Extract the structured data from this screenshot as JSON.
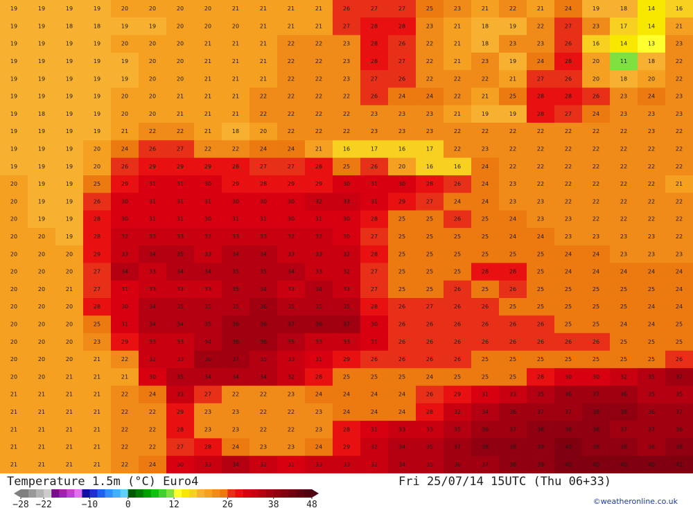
{
  "header": {
    "title": "Temperature 1.5m (°C) Euro4",
    "valid": "Fri 25/07/14 15UTC  (Thu 06+33)",
    "credit": "©weatheronline.co.uk"
  },
  "legend": {
    "min": -28,
    "max": 48,
    "step": 2,
    "ticks": [
      {
        "value": -28,
        "label": "−28"
      },
      {
        "value": -22,
        "label": "−22"
      },
      {
        "value": -10,
        "label": "−10"
      },
      0,
      12,
      26,
      38,
      48
    ],
    "colors": [
      "#808080",
      "#999999",
      "#b3b3b3",
      "#cccccc",
      "#7a0a8c",
      "#a020b0",
      "#c040d0",
      "#e070f0",
      "#1010a0",
      "#2030d0",
      "#2060f0",
      "#3090ff",
      "#40b0ff",
      "#60d0ff",
      "#005a00",
      "#007a00",
      "#00a000",
      "#10c010",
      "#40d030",
      "#80e040",
      "#ffff30",
      "#f8e800",
      "#f8d020",
      "#f8b030",
      "#f5a020",
      "#f08a18",
      "#ec7a10",
      "#e83018",
      "#e81010",
      "#d80010",
      "#c80010",
      "#b40010",
      "#a00010",
      "#900010",
      "#800010",
      "#700010",
      "#600010",
      "#500010"
    ]
  },
  "map": {
    "rows": [
      [
        19,
        19,
        19,
        19,
        20,
        20,
        20,
        20,
        21,
        21,
        21,
        21,
        26,
        27,
        27,
        25,
        23,
        21,
        22,
        21,
        24,
        19,
        18,
        14,
        16
      ],
      [
        19,
        19,
        18,
        18,
        19,
        19,
        20,
        20,
        20,
        21,
        21,
        21,
        27,
        28,
        28,
        23,
        21,
        18,
        19,
        22,
        27,
        23,
        17,
        14,
        21
      ],
      [
        19,
        19,
        19,
        19,
        20,
        20,
        20,
        21,
        21,
        21,
        22,
        22,
        23,
        28,
        26,
        22,
        21,
        18,
        23,
        23,
        26,
        16,
        14,
        13,
        23
      ],
      [
        19,
        19,
        19,
        19,
        19,
        20,
        20,
        21,
        21,
        21,
        22,
        22,
        23,
        28,
        27,
        22,
        21,
        23,
        19,
        24,
        28,
        20,
        11,
        18,
        22
      ],
      [
        19,
        19,
        19,
        19,
        19,
        20,
        20,
        21,
        21,
        21,
        22,
        22,
        23,
        27,
        26,
        22,
        22,
        22,
        21,
        27,
        26,
        20,
        18,
        20,
        22
      ],
      [
        19,
        19,
        19,
        19,
        20,
        20,
        21,
        21,
        21,
        22,
        22,
        22,
        22,
        26,
        24,
        24,
        22,
        21,
        25,
        28,
        28,
        26,
        23,
        24,
        23
      ],
      [
        19,
        18,
        19,
        19,
        20,
        20,
        21,
        21,
        21,
        22,
        22,
        22,
        22,
        23,
        23,
        23,
        21,
        19,
        19,
        28,
        27,
        24,
        23,
        23,
        23
      ],
      [
        19,
        19,
        19,
        19,
        21,
        22,
        22,
        21,
        18,
        20,
        22,
        22,
        22,
        23,
        23,
        23,
        22,
        22,
        22,
        22,
        22,
        22,
        22,
        23,
        22
      ],
      [
        19,
        19,
        19,
        20,
        24,
        26,
        27,
        22,
        22,
        24,
        24,
        21,
        16,
        17,
        16,
        17,
        22,
        23,
        22,
        22,
        22,
        22,
        22,
        22,
        22
      ],
      [
        19,
        19,
        19,
        20,
        26,
        29,
        29,
        29,
        28,
        27,
        27,
        28,
        25,
        26,
        20,
        16,
        16,
        24,
        22,
        22,
        22,
        22,
        22,
        22,
        22
      ],
      [
        20,
        19,
        19,
        25,
        29,
        31,
        31,
        30,
        29,
        28,
        29,
        29,
        30,
        31,
        30,
        28,
        26,
        24,
        23,
        22,
        22,
        22,
        22,
        22,
        21
      ],
      [
        20,
        19,
        19,
        26,
        30,
        31,
        31,
        31,
        30,
        30,
        30,
        32,
        33,
        31,
        29,
        27,
        24,
        24,
        23,
        23,
        22,
        22,
        22,
        22,
        22
      ],
      [
        20,
        19,
        19,
        28,
        30,
        31,
        31,
        30,
        31,
        31,
        30,
        31,
        30,
        28,
        25,
        25,
        26,
        25,
        24,
        23,
        23,
        22,
        22,
        22,
        22
      ],
      [
        20,
        20,
        19,
        28,
        32,
        33,
        33,
        32,
        33,
        33,
        32,
        32,
        30,
        27,
        25,
        25,
        25,
        25,
        24,
        24,
        23,
        23,
        23,
        23,
        22
      ],
      [
        20,
        20,
        20,
        29,
        33,
        34,
        35,
        33,
        34,
        34,
        33,
        33,
        32,
        28,
        25,
        25,
        25,
        25,
        25,
        25,
        24,
        24,
        23,
        23,
        23
      ],
      [
        20,
        20,
        20,
        27,
        34,
        33,
        34,
        34,
        35,
        35,
        34,
        33,
        32,
        27,
        25,
        25,
        25,
        28,
        28,
        25,
        24,
        24,
        24,
        24,
        24
      ],
      [
        20,
        20,
        21,
        27,
        31,
        33,
        33,
        33,
        35,
        34,
        33,
        34,
        33,
        27,
        25,
        25,
        26,
        25,
        26,
        25,
        25,
        25,
        25,
        25,
        24
      ],
      [
        20,
        20,
        20,
        28,
        30,
        34,
        35,
        35,
        35,
        36,
        35,
        35,
        35,
        28,
        26,
        27,
        26,
        26,
        25,
        25,
        25,
        25,
        25,
        24,
        24
      ],
      [
        20,
        20,
        20,
        25,
        31,
        34,
        34,
        35,
        36,
        36,
        37,
        36,
        37,
        30,
        26,
        26,
        26,
        26,
        26,
        26,
        25,
        25,
        24,
        24,
        25
      ],
      [
        20,
        20,
        20,
        23,
        29,
        33,
        33,
        34,
        36,
        36,
        35,
        33,
        33,
        31,
        26,
        26,
        26,
        26,
        26,
        26,
        26,
        26,
        25,
        25,
        25
      ],
      [
        20,
        20,
        20,
        21,
        22,
        32,
        33,
        36,
        37,
        35,
        33,
        31,
        29,
        26,
        26,
        26,
        26,
        25,
        25,
        25,
        25,
        25,
        25,
        25,
        26
      ],
      [
        20,
        20,
        21,
        21,
        21,
        30,
        35,
        34,
        34,
        34,
        32,
        28,
        25,
        25,
        25,
        24,
        25,
        25,
        25,
        28,
        30,
        30,
        32,
        35,
        37
      ],
      [
        21,
        21,
        21,
        21,
        22,
        24,
        33,
        27,
        22,
        22,
        23,
        24,
        24,
        24,
        24,
        26,
        29,
        31,
        33,
        35,
        36,
        37,
        36,
        35,
        35
      ],
      [
        21,
        21,
        21,
        21,
        22,
        22,
        29,
        23,
        23,
        22,
        22,
        23,
        24,
        24,
        24,
        28,
        32,
        34,
        36,
        37,
        37,
        38,
        38,
        36,
        37
      ],
      [
        21,
        21,
        21,
        21,
        22,
        22,
        28,
        23,
        23,
        22,
        22,
        23,
        28,
        31,
        33,
        33,
        35,
        36,
        37,
        38,
        38,
        38,
        37,
        37,
        36
      ],
      [
        21,
        21,
        21,
        21,
        22,
        22,
        27,
        28,
        24,
        23,
        23,
        24,
        29,
        32,
        34,
        35,
        37,
        38,
        38,
        39,
        40,
        38,
        38,
        36,
        38
      ],
      [
        21,
        21,
        21,
        21,
        22,
        24,
        30,
        33,
        34,
        32,
        31,
        33,
        33,
        32,
        34,
        35,
        36,
        37,
        38,
        39,
        40,
        40,
        40,
        40,
        41
      ]
    ]
  }
}
